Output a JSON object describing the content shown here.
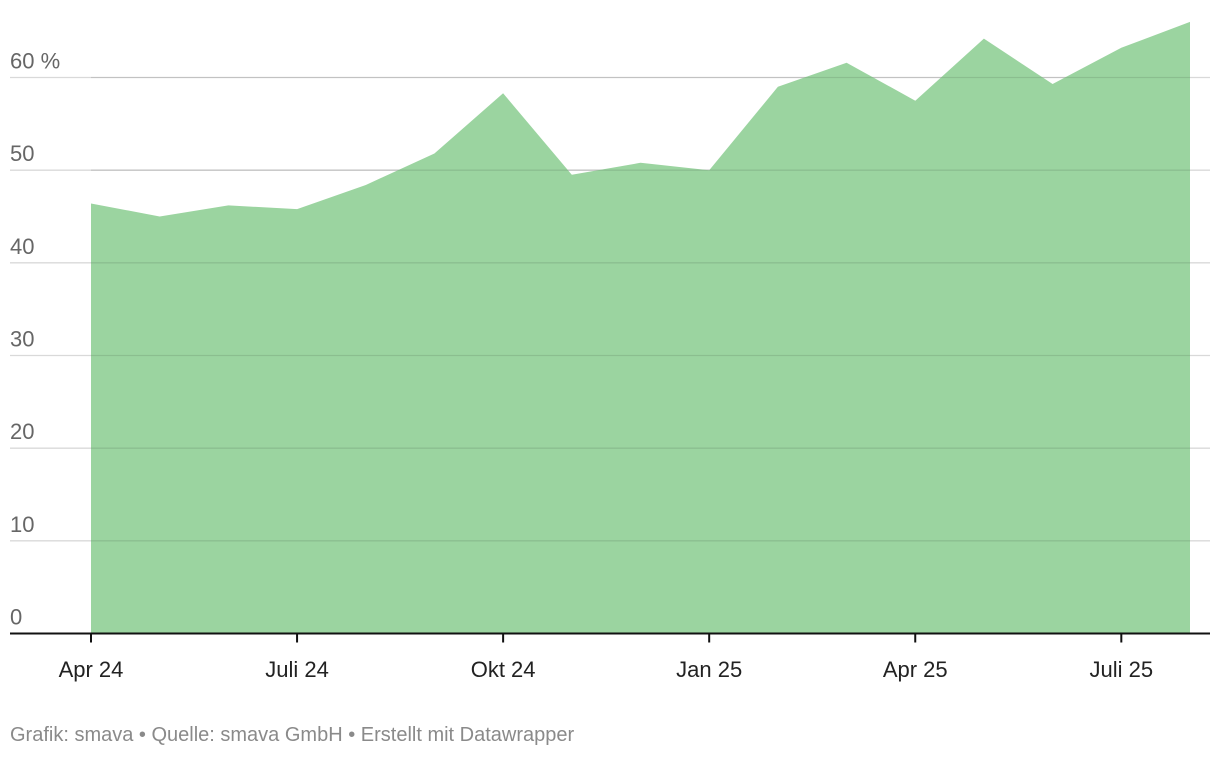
{
  "chart_data": {
    "type": "area",
    "x": [
      "2024-04",
      "2024-05",
      "2024-06",
      "2024-07",
      "2024-08",
      "2024-09",
      "2024-10",
      "2024-11",
      "2024-12",
      "2025-01",
      "2025-02",
      "2025-03",
      "2025-04",
      "2025-05",
      "2025-06",
      "2025-07",
      "2025-08"
    ],
    "series": [
      {
        "values": [
          46.4,
          45.0,
          46.2,
          45.8,
          48.4,
          51.8,
          58.3,
          49.5,
          50.8,
          50.0,
          59.0,
          61.6,
          57.5,
          64.2,
          59.3,
          63.2,
          66.0
        ]
      }
    ],
    "y_ticks": [
      {
        "value": 0,
        "label": "0"
      },
      {
        "value": 10,
        "label": "10"
      },
      {
        "value": 20,
        "label": "20"
      },
      {
        "value": 30,
        "label": "30"
      },
      {
        "value": 40,
        "label": "40"
      },
      {
        "value": 50,
        "label": "50"
      },
      {
        "value": 60,
        "label": "60 %"
      }
    ],
    "x_ticks": [
      {
        "index": 0,
        "label": "Apr 24"
      },
      {
        "index": 3,
        "label": "Juli 24"
      },
      {
        "index": 6,
        "label": "Okt 24"
      },
      {
        "index": 9,
        "label": "Jan 25"
      },
      {
        "index": 12,
        "label": "Apr 25"
      },
      {
        "index": 15,
        "label": "Juli 25"
      }
    ],
    "ylim": [
      0,
      66
    ],
    "grid": true,
    "fill_color": "#9bd4a0",
    "title": "",
    "xlabel": "",
    "ylabel": ""
  },
  "footer": {
    "credit": "Grafik: smava • Quelle: smava GmbH • Erstellt mit Datawrapper"
  }
}
